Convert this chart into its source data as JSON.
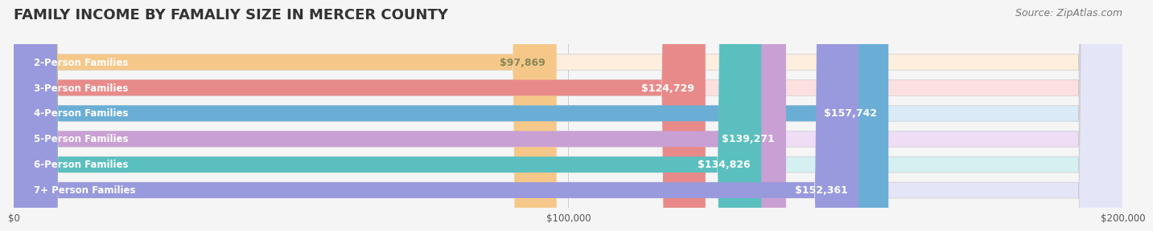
{
  "title": "FAMILY INCOME BY FAMALIY SIZE IN MERCER COUNTY",
  "source": "Source: ZipAtlas.com",
  "categories": [
    "2-Person Families",
    "3-Person Families",
    "4-Person Families",
    "5-Person Families",
    "6-Person Families",
    "7+ Person Families"
  ],
  "values": [
    97869,
    124729,
    157742,
    139271,
    134826,
    152361
  ],
  "labels": [
    "$97,869",
    "$124,729",
    "$157,742",
    "$139,271",
    "$134,826",
    "$152,361"
  ],
  "bar_colors": [
    "#f5c88a",
    "#e88a8a",
    "#6aaed6",
    "#c9a0d4",
    "#5bbfbf",
    "#9999dd"
  ],
  "bar_bg_colors": [
    "#fdeede",
    "#fce0e0",
    "#daeaf7",
    "#eeddf5",
    "#d5f0f0",
    "#e5e5f8"
  ],
  "label_colors": [
    "#888855",
    "#ffffff",
    "#ffffff",
    "#ffffff",
    "#ffffff",
    "#ffffff"
  ],
  "xlim": [
    0,
    200000
  ],
  "xtick_labels": [
    "$0",
    "$100,000",
    "$200,000"
  ],
  "xtick_values": [
    0,
    100000,
    200000
  ],
  "title_fontsize": 13,
  "source_fontsize": 9,
  "bar_label_fontsize": 9,
  "category_fontsize": 8.5,
  "background_color": "#f5f5f5"
}
